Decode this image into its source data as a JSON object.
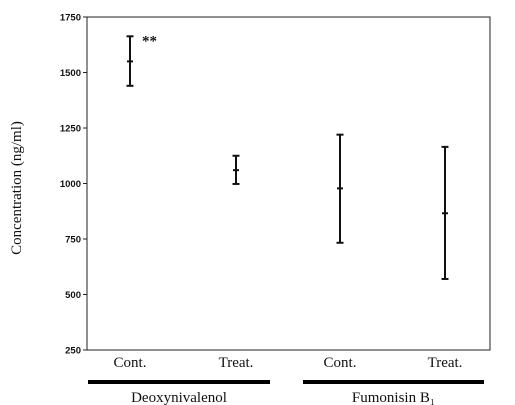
{
  "chart_data": {
    "type": "errorbar",
    "title": "",
    "xlabel": "",
    "ylabel": "Concentration (ng/ml)",
    "ylim": [
      250,
      1750
    ],
    "yticks": [
      250,
      500,
      750,
      1000,
      1250,
      1500,
      1750
    ],
    "ytick_labels": [
      "250",
      "500",
      "750",
      "1000",
      "1250",
      "1500",
      "1750"
    ],
    "grid": false,
    "categories": [
      "Cont.",
      "Treat.",
      "Cont.",
      "Treat."
    ],
    "points": [
      {
        "category": "Cont.",
        "group": "Deoxynivalenol",
        "mean": 1550,
        "lower": 1440,
        "upper": 1663
      },
      {
        "category": "Treat.",
        "group": "Deoxynivalenol",
        "mean": 1060,
        "lower": 998,
        "upper": 1125
      },
      {
        "category": "Cont.",
        "group": "Fumonisin B₁",
        "mean": 978,
        "lower": 733,
        "upper": 1220
      },
      {
        "category": "Treat.",
        "group": "Fumonisin B₁",
        "mean": 866,
        "lower": 570,
        "upper": 1165
      }
    ],
    "groups": [
      {
        "name": "Deoxynivalenol",
        "categories": [
          0,
          1
        ]
      },
      {
        "name": "Fumonisin B₁",
        "categories": [
          2,
          3
        ]
      }
    ],
    "annotations": [
      {
        "text": "**",
        "category_index": 0
      }
    ]
  }
}
